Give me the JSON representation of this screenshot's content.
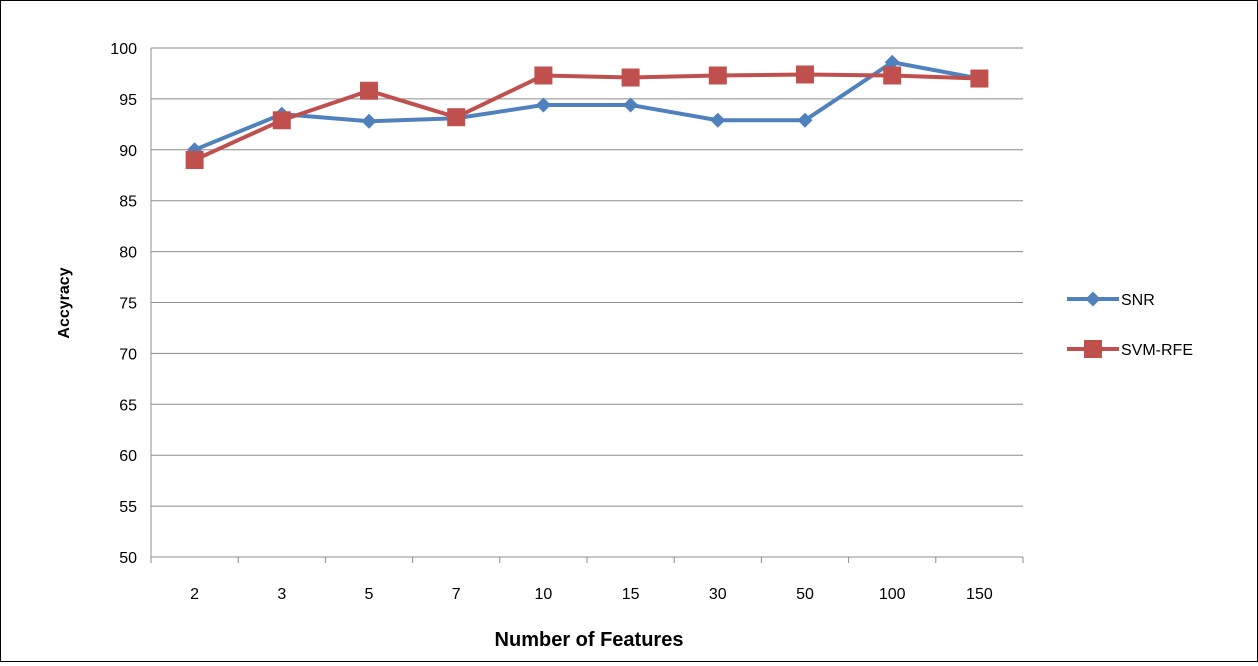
{
  "chart_data": {
    "type": "line",
    "title": "",
    "xlabel": "Number of Features",
    "ylabel": "Accyracy",
    "categories": [
      "2",
      "3",
      "5",
      "7",
      "10",
      "15",
      "30",
      "50",
      "100",
      "150"
    ],
    "ylim": [
      50,
      100
    ],
    "yticks": [
      50,
      55,
      60,
      65,
      70,
      75,
      80,
      85,
      90,
      95,
      100
    ],
    "grid": true,
    "legend_position": "right",
    "series": [
      {
        "name": "SNR",
        "color": "#4F81BD",
        "marker": "diamond",
        "values": [
          90.0,
          93.5,
          92.8,
          93.1,
          94.4,
          94.4,
          92.9,
          92.9,
          98.6,
          97.0
        ]
      },
      {
        "name": "SVM-RFE",
        "color": "#C0504D",
        "marker": "square",
        "values": [
          89.0,
          92.9,
          95.8,
          93.2,
          97.3,
          97.1,
          97.3,
          97.4,
          97.3,
          97.0
        ]
      }
    ]
  }
}
